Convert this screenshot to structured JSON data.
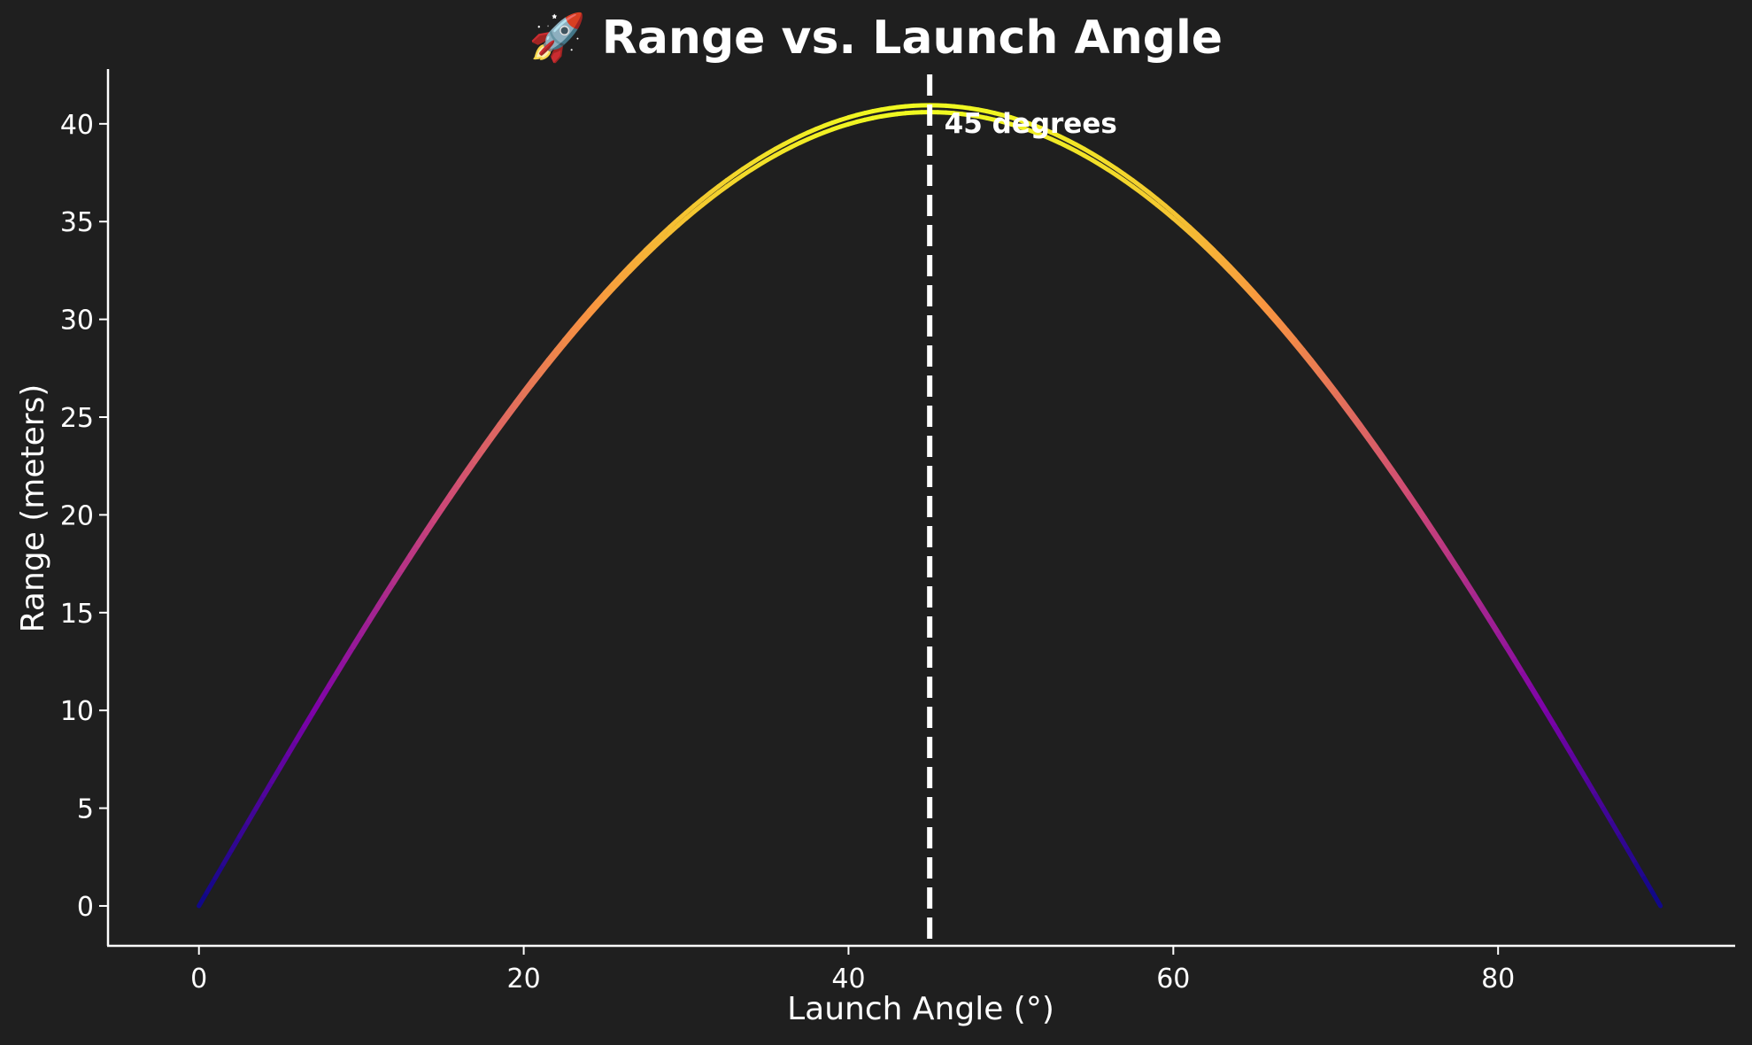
{
  "chart_data": {
    "type": "line",
    "title": "🚀 Range vs. Launch Angle",
    "xlabel": "Launch Angle (°)",
    "ylabel": "Range (meters)",
    "xlim": [
      -5.6,
      94.6
    ],
    "ylim": [
      -2.04,
      42.8
    ],
    "xticks": [
      "0",
      "20",
      "40",
      "60",
      "80"
    ],
    "yticks": [
      "0",
      "5",
      "10",
      "15",
      "20",
      "25",
      "30",
      "35",
      "40"
    ],
    "grid": false,
    "colormap": [
      "#0d0887",
      "#7e03a8",
      "#cc4778",
      "#f89540",
      "#f0f921"
    ],
    "series": [
      {
        "max_range": 40.95,
        "samples": [
          [
            0,
            0
          ],
          [
            10,
            14.0
          ],
          [
            20,
            26.3
          ],
          [
            30,
            35.5
          ],
          [
            40,
            40.3
          ],
          [
            45,
            40.95
          ],
          [
            50,
            40.3
          ],
          [
            60,
            35.5
          ],
          [
            70,
            26.3
          ],
          [
            80,
            14.0
          ],
          [
            90,
            0
          ]
        ]
      },
      {
        "max_range": 40.6,
        "samples": [
          [
            0,
            0
          ],
          [
            10,
            13.9
          ],
          [
            20,
            26.1
          ],
          [
            30,
            35.2
          ],
          [
            40,
            40.0
          ],
          [
            45,
            40.6
          ],
          [
            50,
            40.0
          ],
          [
            60,
            35.2
          ],
          [
            70,
            26.1
          ],
          [
            80,
            13.9
          ],
          [
            90,
            0
          ]
        ]
      }
    ],
    "vline": {
      "x": 45,
      "color": "#ffffff",
      "style": "dashed"
    },
    "annotation": {
      "text": "45 degrees",
      "x": 45.9,
      "y": 40
    }
  }
}
